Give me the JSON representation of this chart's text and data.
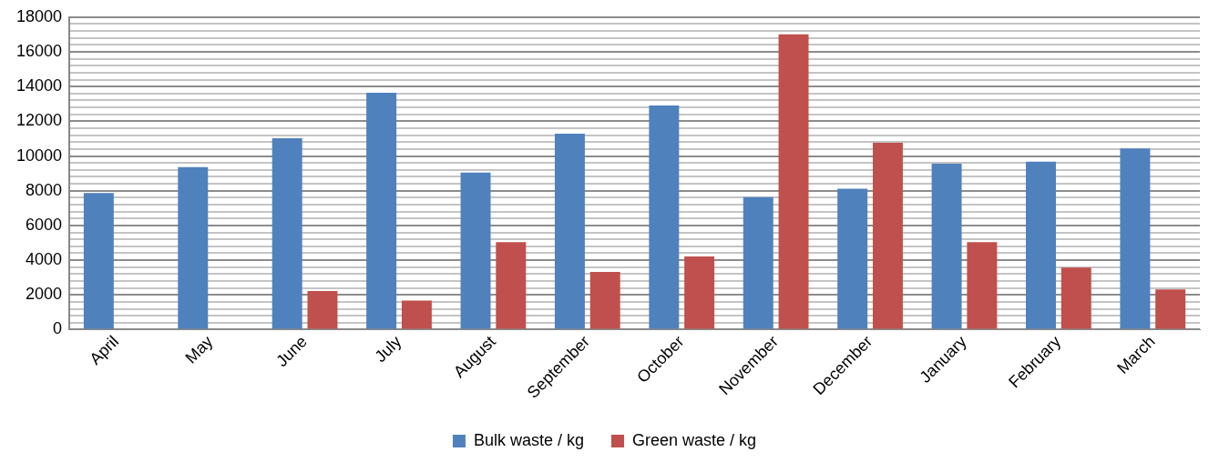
{
  "chart_data": {
    "type": "bar",
    "categories": [
      "April",
      "May",
      "June",
      "July",
      "August",
      "September",
      "October",
      "November",
      "December",
      "January",
      "February",
      "March"
    ],
    "series": [
      {
        "name": "Bulk waste / kg",
        "color": "#4f81bd",
        "values": [
          7870,
          9360,
          11030,
          13640,
          9040,
          11290,
          12910,
          7630,
          8120,
          9560,
          9680,
          10440
        ]
      },
      {
        "name": "Green waste / kg",
        "color": "#c0504d",
        "values": [
          null,
          null,
          2230,
          1670,
          5040,
          3330,
          4210,
          17010,
          10760,
          5040,
          3570,
          2320
        ]
      }
    ],
    "ylim": [
      0,
      18000
    ],
    "yticks": [
      0,
      {
        "value": 400,
        "label": null
      },
      {
        "value": 800,
        "label": null
      },
      {
        "value": 1200,
        "label": null
      },
      {
        "value": 1600,
        "label": null
      },
      2000,
      {
        "value": 2400,
        "label": null
      },
      {
        "value": 2800,
        "label": null
      },
      {
        "value": 3200,
        "label": null
      },
      {
        "value": 3600,
        "label": null
      },
      4000,
      {
        "value": 4400,
        "label": null
      },
      {
        "value": 4800,
        "label": null
      },
      {
        "value": 5200,
        "label": null
      },
      {
        "value": 5600,
        "label": null
      },
      6000,
      {
        "value": 6400,
        "label": null
      },
      {
        "value": 6800,
        "label": null
      },
      {
        "value": 7200,
        "label": null
      },
      {
        "value": 7600,
        "label": null
      },
      8000,
      {
        "value": 8400,
        "label": null
      },
      {
        "value": 8800,
        "label": null
      },
      {
        "value": 9200,
        "label": null
      },
      {
        "value": 9600,
        "label": null
      },
      10000,
      {
        "value": 10400,
        "label": null
      },
      {
        "value": 10800,
        "label": null
      },
      {
        "value": 11200,
        "label": null
      },
      {
        "value": 11600,
        "label": null
      },
      12000,
      {
        "value": 12400,
        "label": null
      },
      {
        "value": 12800,
        "label": null
      },
      {
        "value": 13200,
        "label": null
      },
      {
        "value": 13600,
        "label": null
      },
      14000,
      {
        "value": 14400,
        "label": null
      },
      {
        "value": 14800,
        "label": null
      },
      {
        "value": 15200,
        "label": null
      },
      {
        "value": 15600,
        "label": null
      },
      16000,
      {
        "value": 16400,
        "label": null
      },
      {
        "value": 16800,
        "label": null
      },
      {
        "value": 17200,
        "label": null
      },
      {
        "value": 17600,
        "label": null
      },
      18000
    ],
    "grid": "y",
    "legend": "bottom"
  }
}
